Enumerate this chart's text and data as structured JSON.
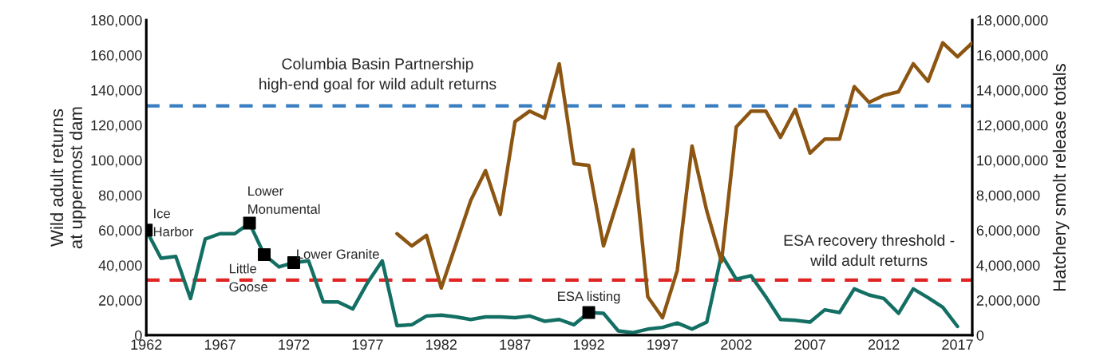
{
  "chart_data": {
    "type": "line",
    "ylabel": "Wild adult returns\nat uppermost dam",
    "y2label": "Hatchery smolt release totals",
    "xlim": [
      1962,
      2018
    ],
    "xticks": [
      1962,
      1967,
      1972,
      1977,
      1982,
      1987,
      1992,
      1997,
      2002,
      2007,
      2012,
      2017
    ],
    "ylim": [
      0,
      180000
    ],
    "yticks": [
      {
        "value": 0,
        "label": "0"
      },
      {
        "value": 20000,
        "label": "20,000"
      },
      {
        "value": 40000,
        "label": "40,000"
      },
      {
        "value": 60000,
        "label": "60,000"
      },
      {
        "value": 80000,
        "label": "80,000"
      },
      {
        "value": 100000,
        "label": "100,000"
      },
      {
        "value": 120000,
        "label": "120,000"
      },
      {
        "value": 140000,
        "label": "140,000"
      },
      {
        "value": 160000,
        "label": "160,000"
      },
      {
        "value": 180000,
        "label": "180,000"
      }
    ],
    "y2lim": [
      0,
      18000000
    ],
    "y2ticks": [
      {
        "value": 0,
        "label": "0"
      },
      {
        "value": 2000000,
        "label": "2,000,000"
      },
      {
        "value": 4000000,
        "label": "4,000,000"
      },
      {
        "value": 6000000,
        "label": "6,000,000"
      },
      {
        "value": 8000000,
        "label": "8,000,000"
      },
      {
        "value": 10000000,
        "label": "10,000,000"
      },
      {
        "value": 12000000,
        "label": "12,000,000"
      },
      {
        "value": 14000000,
        "label": "14,000,000"
      },
      {
        "value": 16000000,
        "label": "16,000,000"
      },
      {
        "value": 18000000,
        "label": "18,000,000"
      }
    ],
    "grid": false,
    "legend": false,
    "line_style": "solid",
    "series": [
      {
        "color": "#136f63",
        "marker": "none",
        "x": [
          1962,
          1963,
          1964,
          1965,
          1966,
          1967,
          1968,
          1969,
          1970,
          1971,
          1972,
          1973,
          1974,
          1975,
          1976,
          1977,
          1978,
          1979,
          1980,
          1981,
          1982,
          1983,
          1984,
          1985,
          1986,
          1987,
          1988,
          1989,
          1990,
          1991,
          1992,
          1993,
          1994,
          1995,
          1996,
          1997,
          1998,
          1999,
          2000,
          2001,
          2002,
          2003,
          2004,
          2005,
          2006,
          2007,
          2008,
          2009,
          2010,
          2011,
          2012,
          2013,
          2014,
          2015,
          2016,
          2017
        ],
        "values": [
          60000,
          44000,
          45000,
          21000,
          55000,
          58000,
          58000,
          64000,
          46000,
          39000,
          41500,
          42500,
          19000,
          19000,
          15000,
          30000,
          42500,
          5500,
          6000,
          11000,
          11500,
          10500,
          9000,
          10500,
          10500,
          10000,
          11000,
          8000,
          9000,
          6000,
          13000,
          12500,
          2500,
          1500,
          3500,
          4500,
          7000,
          3500,
          7500,
          46000,
          32000,
          34000,
          22000,
          9000,
          8500,
          7500,
          14500,
          13000,
          26500,
          23000,
          21000,
          12500,
          26500,
          21500,
          16000,
          5000
        ]
      },
      {
        "color": "#8c5511",
        "marker": "none",
        "axis": "y2",
        "x": [
          1979,
          1980,
          1981,
          1982,
          1983,
          1984,
          1985,
          1986,
          1987,
          1988,
          1989,
          1990,
          1991,
          1992,
          1993,
          1994,
          1995,
          1996,
          1997,
          1998,
          1999,
          2000,
          2001,
          2002,
          2003,
          2004,
          2005,
          2006,
          2007,
          2008,
          2009,
          2010,
          2011,
          2012,
          2013,
          2014,
          2015,
          2016,
          2017,
          2018
        ],
        "values": [
          5800000,
          5100000,
          5700000,
          2700000,
          5200000,
          7700000,
          9400000,
          6900000,
          12200000,
          12800000,
          12400000,
          15500000,
          9800000,
          9700000,
          5100000,
          7800000,
          10600000,
          2200000,
          1000000,
          3700000,
          10800000,
          7100000,
          4200000,
          11900000,
          12800000,
          12800000,
          11300000,
          12900000,
          10400000,
          11200000,
          11200000,
          14200000,
          13300000,
          13700000,
          13900000,
          15500000,
          14500000,
          16700000,
          15900000,
          16700000
        ]
      },
      {
        "type": "scatter",
        "color": "#000000",
        "marker": "square",
        "x": [
          1962,
          1969,
          1970,
          1972,
          1992
        ],
        "values": [
          60000,
          64000,
          46000,
          41500,
          13000
        ]
      }
    ],
    "ref_lines": [
      {
        "axis": "y",
        "value": 131000,
        "label": "Columbia Basin Partnership\nhigh-end goal for wild adult returns",
        "color": "#3a7fc1",
        "line_style": "dashed"
      },
      {
        "axis": "y",
        "value": 31500,
        "label": "ESA recovery threshold -\nwild adult returns",
        "color": "#e02424",
        "line_style": "dashed"
      }
    ],
    "annotations": [
      {
        "text": "Ice\nHarbor",
        "x": 1962,
        "y": 60000
      },
      {
        "text": "Lower\nMonumental",
        "x": 1969,
        "y": 64000
      },
      {
        "text": "Little\nGoose",
        "x": 1970,
        "y": 46000
      },
      {
        "text": "Lower Granite",
        "x": 1972,
        "y": 41500
      },
      {
        "text": "ESA listing",
        "x": 1992,
        "y": 13000
      }
    ]
  }
}
